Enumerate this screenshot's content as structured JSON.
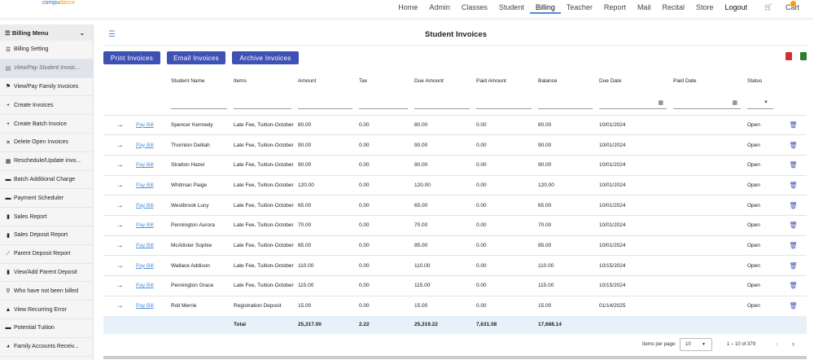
{
  "brand": {
    "name_prefix": "compu",
    "name_suffix": "dance"
  },
  "nav": {
    "items": [
      "Home",
      "Admin",
      "Classes",
      "Student",
      "Billing",
      "Teacher",
      "Report",
      "Mail",
      "Recital",
      "Store"
    ],
    "active": "Billing",
    "logout": "Logout",
    "cart": "Cart"
  },
  "sidebar": {
    "title": "Billing Menu",
    "items": [
      {
        "icon": "list-icon",
        "glyph": "☰",
        "label": "Billing Setting"
      },
      {
        "icon": "invoice-icon",
        "glyph": "▤",
        "label": "View/Pay Student Invoic..."
      },
      {
        "icon": "flag-icon",
        "glyph": "⚑",
        "label": "View/Pay Family Invoices"
      },
      {
        "icon": "plus-icon",
        "glyph": "+",
        "label": "Create Invoices"
      },
      {
        "icon": "plus-icon",
        "glyph": "+",
        "label": "Create Batch Invoice"
      },
      {
        "icon": "close-icon",
        "glyph": "✕",
        "label": "Delete Open Invoices"
      },
      {
        "icon": "calendar-icon",
        "glyph": "▦",
        "label": "Reschedule/Update invo..."
      },
      {
        "icon": "card-icon",
        "glyph": "▬",
        "label": "Batch Additional Charge"
      },
      {
        "icon": "wallet-icon",
        "glyph": "▬",
        "label": "Payment Scheduler"
      },
      {
        "icon": "bar-chart-icon",
        "glyph": "▮",
        "label": "Sales Report"
      },
      {
        "icon": "bar-chart-icon",
        "glyph": "▮",
        "label": "Sales Deposit Report"
      },
      {
        "icon": "line-chart-icon",
        "glyph": "⟋",
        "label": "Parent Deposit Report"
      },
      {
        "icon": "bar-chart-icon",
        "glyph": "▮",
        "label": "View/Add Parent Deposit"
      },
      {
        "icon": "search-icon",
        "glyph": "⚲",
        "label": "Who have not been billed"
      },
      {
        "icon": "warning-icon",
        "glyph": "▲",
        "label": "View Recurring Error"
      },
      {
        "icon": "briefcase-icon",
        "glyph": "▬",
        "label": "Potential Tuition"
      },
      {
        "icon": "pie-chart-icon",
        "glyph": "◕",
        "label": "Family Accounts Receiv..."
      }
    ],
    "active_index": 1
  },
  "page": {
    "title": "Student Invoices"
  },
  "actions": {
    "print": "Print Invoices",
    "email": "Email Invoices",
    "archive": "Archive Invoices"
  },
  "table": {
    "columns": [
      "Student Name",
      "Items",
      "Amount",
      "Tax",
      "Due Amount",
      "Paid Amount",
      "Balance",
      "Due Date",
      "Paid Date",
      "Status"
    ],
    "pay_label": "Pay Bill",
    "rows": [
      {
        "name": "Spencer Kennedy",
        "items": "Late Fee, Tuition-October",
        "amount": "80.00",
        "tax": "0.00",
        "due": "80.00",
        "paid": "0.00",
        "balance": "80.00",
        "due_date": "10/01/2024",
        "paid_date": "",
        "status": "Open"
      },
      {
        "name": "Thornton Delilah",
        "items": "Late Fee, Tuition-October",
        "amount": "90.00",
        "tax": "0.00",
        "due": "90.00",
        "paid": "0.00",
        "balance": "90.00",
        "due_date": "10/01/2024",
        "paid_date": "",
        "status": "Open"
      },
      {
        "name": "Stratton Hazel",
        "items": "Late Fee, Tuition-October",
        "amount": "90.00",
        "tax": "0.00",
        "due": "90.00",
        "paid": "0.00",
        "balance": "90.00",
        "due_date": "10/01/2024",
        "paid_date": "",
        "status": "Open"
      },
      {
        "name": "Whitman Paige",
        "items": "Late Fee, Tuition-October",
        "amount": "120.00",
        "tax": "0.00",
        "due": "120.00",
        "paid": "0.00",
        "balance": "120.00",
        "due_date": "10/01/2024",
        "paid_date": "",
        "status": "Open"
      },
      {
        "name": "Westbrook Lucy",
        "items": "Late Fee, Tuition-October",
        "amount": "65.00",
        "tax": "0.00",
        "due": "65.00",
        "paid": "0.00",
        "balance": "65.00",
        "due_date": "10/01/2024",
        "paid_date": "",
        "status": "Open"
      },
      {
        "name": "Pennington Aurora",
        "items": "Late Fee, Tuition-October",
        "amount": "70.00",
        "tax": "0.00",
        "due": "70.00",
        "paid": "0.00",
        "balance": "70.00",
        "due_date": "10/01/2024",
        "paid_date": "",
        "status": "Open"
      },
      {
        "name": "McAllister Sophie",
        "items": "Late Fee, Tuition-October",
        "amount": "85.00",
        "tax": "0.00",
        "due": "85.00",
        "paid": "0.00",
        "balance": "85.00",
        "due_date": "10/01/2024",
        "paid_date": "",
        "status": "Open"
      },
      {
        "name": "Wallace Addison",
        "items": "Late Fee, Tuition-October",
        "amount": "110.00",
        "tax": "0.00",
        "due": "110.00",
        "paid": "0.00",
        "balance": "110.00",
        "due_date": "10/15/2024",
        "paid_date": "",
        "status": "Open"
      },
      {
        "name": "Pennington Grace",
        "items": "Late Fee, Tuition-October",
        "amount": "115.00",
        "tax": "0.00",
        "due": "115.00",
        "paid": "0.00",
        "balance": "115.00",
        "due_date": "10/15/2024",
        "paid_date": "",
        "status": "Open"
      },
      {
        "name": "Roll Merrie",
        "items": "Registration Deposit",
        "amount": "15.00",
        "tax": "0.00",
        "due": "15.00",
        "paid": "0.00",
        "balance": "15.00",
        "due_date": "01/14/2025",
        "paid_date": "",
        "status": "Open"
      }
    ],
    "totals": {
      "label": "Total",
      "amount": "25,317.00",
      "tax": "2.22",
      "due": "25,319.22",
      "paid": "7,631.08",
      "balance": "17,688.14"
    }
  },
  "pager": {
    "items_per_page_label": "Items per page:",
    "page_size": "10",
    "range": "1 – 10 of 379"
  },
  "colors": {
    "primary": "#3f51b5",
    "link": "#4a90d9",
    "total_bg": "#e7f1fa"
  }
}
